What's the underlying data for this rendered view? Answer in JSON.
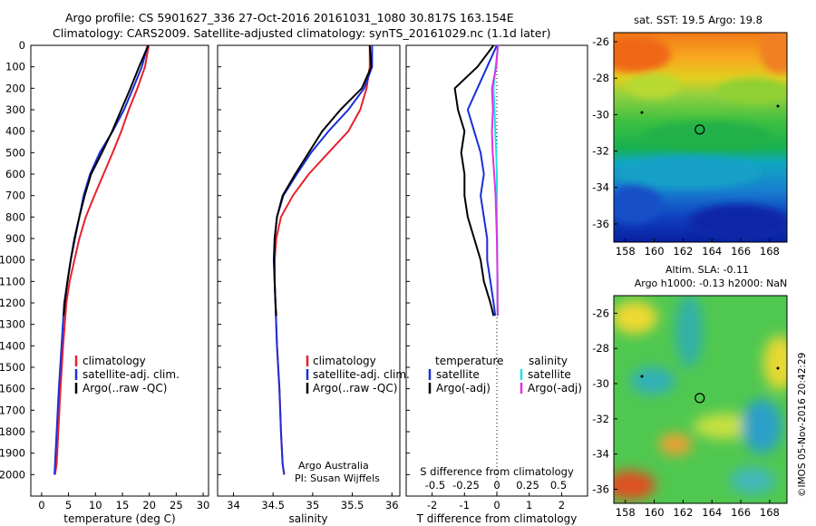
{
  "header": {
    "line1": "Argo profile: CS 5901627_336 27-Oct-2016 20161031_1080 30.817S 163.154E",
    "line2": "Climatology: CARS2009. Satellite-adjusted climatology: synTS_20161029.nc (1.1d later)"
  },
  "side_label": "©IMOS 05-Nov-2016 20:42:29",
  "colors": {
    "climatology": "#e8202a",
    "satellite": "#1a2fd6",
    "argo": "#000000",
    "sal_satellite": "#20e0e8",
    "sal_argo": "#e030e0"
  },
  "chart_data": [
    {
      "type": "line",
      "xlabel": "temperature (deg C)",
      "xticks": [
        "0",
        "5",
        "10",
        "15",
        "20",
        "25",
        "30"
      ],
      "xlim": [
        -2,
        31
      ],
      "ylim": [
        0,
        2100
      ],
      "yticks": [
        "0",
        "100",
        "200",
        "300",
        "400",
        "500",
        "600",
        "700",
        "800",
        "900",
        "1000",
        "1100",
        "1200",
        "1300",
        "1400",
        "1500",
        "1600",
        "1700",
        "1800",
        "1900",
        "2000"
      ],
      "series": [
        {
          "name": "climatology",
          "color": "#e8202a",
          "x": [
            19.9,
            19.2,
            17.8,
            16.2,
            14.8,
            13.2,
            11.5,
            9.8,
            8.2,
            7.0,
            6.1,
            5.2,
            4.6,
            4.0,
            3.5,
            3.1,
            2.8,
            2.5
          ],
          "y": [
            0,
            100,
            200,
            300,
            400,
            500,
            600,
            700,
            800,
            900,
            1000,
            1100,
            1200,
            1400,
            1600,
            1800,
            1950,
            2000
          ]
        },
        {
          "name": "satellite-adj. clim.",
          "color": "#1a2fd6",
          "x": [
            19.7,
            18.6,
            17.0,
            15.3,
            13.2,
            10.8,
            9.0,
            7.8,
            7.0,
            6.2,
            5.4,
            4.8,
            4.2,
            3.7,
            3.2,
            2.8,
            2.5,
            2.4
          ],
          "y": [
            0,
            100,
            200,
            300,
            400,
            500,
            600,
            700,
            800,
            900,
            1000,
            1100,
            1200,
            1400,
            1600,
            1800,
            1950,
            2000
          ]
        },
        {
          "name": "Argo(..raw -QC)",
          "color": "#000000",
          "x": [
            19.8,
            18.1,
            16.5,
            14.8,
            13.1,
            11.2,
            9.2,
            8.0,
            7.0,
            6.1,
            5.4,
            4.8,
            4.3,
            4.1
          ],
          "y": [
            0,
            100,
            200,
            300,
            400,
            500,
            600,
            700,
            800,
            900,
            1000,
            1100,
            1200,
            1260
          ]
        }
      ],
      "legend": {
        "placement": "bottom-right",
        "entries": [
          "climatology",
          "satellite-adj. clim.",
          "Argo(..raw -QC)"
        ]
      }
    },
    {
      "type": "line",
      "xlabel": "salinity",
      "xticks": [
        "34",
        "34.5",
        "35",
        "35.5",
        "36"
      ],
      "xlim": [
        33.8,
        36.1
      ],
      "ylim": [
        0,
        2100
      ],
      "series": [
        {
          "name": "climatology",
          "color": "#e8202a",
          "x": [
            35.72,
            35.72,
            35.68,
            35.6,
            35.45,
            35.2,
            34.95,
            34.75,
            34.6,
            34.54,
            34.52,
            34.52,
            34.53,
            34.55,
            34.58,
            34.6,
            34.62,
            34.64
          ],
          "y": [
            0,
            100,
            200,
            300,
            400,
            500,
            600,
            700,
            800,
            900,
            1000,
            1100,
            1200,
            1400,
            1600,
            1800,
            1950,
            2000
          ]
        },
        {
          "name": "satellite-adj. clim.",
          "color": "#1a2fd6",
          "x": [
            35.75,
            35.75,
            35.65,
            35.45,
            35.2,
            34.98,
            34.8,
            34.63,
            34.55,
            34.52,
            34.52,
            34.52,
            34.53,
            34.55,
            34.58,
            34.6,
            34.62,
            34.64
          ],
          "y": [
            0,
            100,
            200,
            300,
            400,
            500,
            600,
            700,
            800,
            900,
            1000,
            1100,
            1200,
            1400,
            1600,
            1800,
            1950,
            2000
          ]
        },
        {
          "name": "Argo(..raw -QC)",
          "color": "#000000",
          "x": [
            35.72,
            35.74,
            35.62,
            35.35,
            35.12,
            34.95,
            34.78,
            34.62,
            34.55,
            34.52,
            34.51,
            34.52,
            34.53,
            34.54
          ],
          "y": [
            0,
            100,
            200,
            300,
            400,
            500,
            600,
            700,
            800,
            900,
            1000,
            1100,
            1200,
            1260
          ]
        }
      ],
      "legend": {
        "placement": "bottom-right",
        "entries": [
          "climatology",
          "satellite-adj. clim.",
          "Argo(..raw -QC)"
        ]
      },
      "annotation": {
        "line1": "Argo Australia",
        "line2": "PI: Susan Wijffels"
      }
    },
    {
      "type": "line",
      "xlabel": "T difference from climatology",
      "xlabel_top": "S difference from climatology",
      "xticks": [
        "-2",
        "-1",
        "0",
        "1",
        "2"
      ],
      "xticks_top": [
        "-0.5",
        "-0.25",
        "0",
        "0.25",
        "0.5"
      ],
      "xlim": [
        -2.8,
        2.8
      ],
      "ylim": [
        0,
        2100
      ],
      "series": [
        {
          "name": "temperature satellite",
          "color": "#1a2fd6",
          "x": [
            0.0,
            -0.3,
            -0.6,
            -0.9,
            -0.7,
            -0.5,
            -0.4,
            -0.5,
            -0.4,
            -0.3,
            -0.3,
            -0.2,
            -0.1,
            -0.05
          ],
          "y": [
            0,
            100,
            200,
            300,
            400,
            500,
            600,
            700,
            800,
            900,
            1000,
            1100,
            1200,
            1260
          ]
        },
        {
          "name": "temperature Argo(-adj)",
          "color": "#000000",
          "x": [
            -0.1,
            -0.6,
            -1.3,
            -1.2,
            -1.0,
            -1.1,
            -1.0,
            -1.0,
            -0.9,
            -0.7,
            -0.5,
            -0.4,
            -0.2,
            -0.1
          ],
          "y": [
            0,
            100,
            200,
            300,
            400,
            500,
            600,
            700,
            800,
            900,
            1000,
            1100,
            1200,
            1260
          ]
        },
        {
          "name": "salinity satellite",
          "color": "#20e0e8",
          "x": [
            0.04,
            -0.04,
            -0.1,
            -0.07,
            -0.05,
            -0.02,
            0.0,
            0.0,
            0.0,
            0.01,
            0.01,
            0.02,
            0.02,
            0.02
          ],
          "y": [
            0,
            100,
            200,
            300,
            400,
            500,
            600,
            700,
            800,
            900,
            1000,
            1100,
            1200,
            1260
          ]
        },
        {
          "name": "salinity Argo(-adj)",
          "color": "#e030e0",
          "x": [
            0.03,
            -0.02,
            -0.15,
            -0.12,
            -0.15,
            -0.13,
            -0.08,
            -0.04,
            -0.02,
            0.0,
            0.01,
            0.02,
            0.02,
            0.03
          ],
          "y": [
            0,
            100,
            200,
            300,
            400,
            500,
            600,
            700,
            800,
            900,
            1000,
            1100,
            1200,
            1260
          ]
        }
      ],
      "legend": {
        "placement": "bottom-right",
        "temperature_title": "temperature",
        "salinity_title": "salinity",
        "entries": [
          "satellite",
          "Argo(-adj)",
          "satellite",
          "Argo(-adj)"
        ]
      }
    },
    {
      "type": "heatmap",
      "title": "sat. SST: 19.5 Argo: 19.8",
      "xticks": [
        "158",
        "160",
        "162",
        "164",
        "166",
        "168"
      ],
      "yticks": [
        "-26",
        "-28",
        "-30",
        "-32",
        "-34",
        "-36"
      ],
      "xlim": [
        157.2,
        169.2
      ],
      "ylim": [
        -37.0,
        -25.5
      ],
      "marker": {
        "lon": 163.154,
        "lat": -30.817
      }
    },
    {
      "type": "heatmap",
      "title_line1": "Altim. SLA: -0.11",
      "title_line2": "Argo h1000: -0.13 h2000: NaN",
      "xticks": [
        "158",
        "160",
        "162",
        "164",
        "166",
        "168"
      ],
      "yticks": [
        "-26",
        "-28",
        "-30",
        "-32",
        "-34",
        "-36"
      ],
      "xlim": [
        157.2,
        169.2
      ],
      "ylim": [
        -36.8,
        -25.0
      ],
      "marker": {
        "lon": 163.154,
        "lat": -30.817
      }
    }
  ]
}
